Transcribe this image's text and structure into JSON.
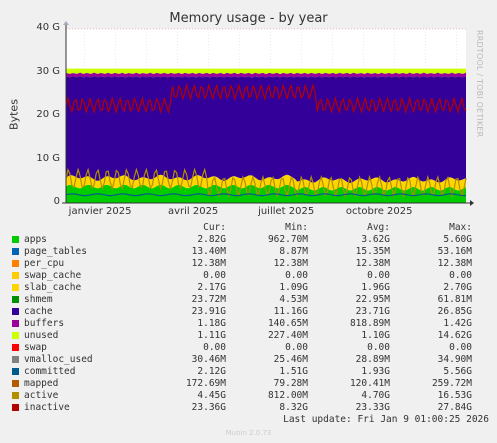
{
  "chart_data": {
    "type": "area",
    "title": "Memory usage - by year",
    "ylabel": "Bytes",
    "ylim": [
      0,
      40
    ],
    "yticks": [
      "0",
      "10 G",
      "20 G",
      "30 G",
      "40 G"
    ],
    "xticks": [
      {
        "label": "janvier 2025",
        "month": 0
      },
      {
        "label": "avril 2025",
        "month": 3
      },
      {
        "label": "juillet 2025",
        "month": 6
      },
      {
        "label": "octobre 2025",
        "month": 9
      }
    ],
    "x_range_months": [
      -0.6,
      12.3
    ],
    "grid": true,
    "legend_position": "bottom",
    "columns": [
      "Cur:",
      "Min:",
      "Avg:",
      "Max:"
    ],
    "series": [
      {
        "name": "apps",
        "color": "#00cc00",
        "cur": "2.82G",
        "min": "962.70M",
        "avg": "3.62G",
        "max": "5.60G"
      },
      {
        "name": "page_tables",
        "color": "#0066b3",
        "cur": "13.40M",
        "min": "8.87M",
        "avg": "15.35M",
        "max": "53.16M"
      },
      {
        "name": "per_cpu",
        "color": "#ff8000",
        "cur": "12.38M",
        "min": "12.38M",
        "avg": "12.38M",
        "max": "12.38M"
      },
      {
        "name": "swap_cache",
        "color": "#ffcc00",
        "cur": "0.00",
        "min": "0.00",
        "avg": "0.00",
        "max": "0.00"
      },
      {
        "name": "slab_cache",
        "color": "#ffd500",
        "cur": "2.17G",
        "min": "1.09G",
        "avg": "1.96G",
        "max": "2.70G"
      },
      {
        "name": "shmem",
        "color": "#008f00",
        "cur": "23.72M",
        "min": "4.53M",
        "avg": "22.95M",
        "max": "61.81M"
      },
      {
        "name": "cache",
        "color": "#330099",
        "cur": "23.91G",
        "min": "11.16G",
        "avg": "23.71G",
        "max": "26.85G"
      },
      {
        "name": "buffers",
        "color": "#990099",
        "cur": "1.18G",
        "min": "140.65M",
        "avg": "818.89M",
        "max": "1.42G"
      },
      {
        "name": "unused",
        "color": "#ccff00",
        "cur": "1.11G",
        "min": "227.40M",
        "avg": "1.10G",
        "max": "14.62G"
      },
      {
        "name": "swap",
        "color": "#ff0000",
        "cur": "0.00",
        "min": "0.00",
        "avg": "0.00",
        "max": "0.00"
      },
      {
        "name": "vmalloc_used",
        "color": "#808080",
        "cur": "30.46M",
        "min": "25.46M",
        "avg": "28.89M",
        "max": "34.90M"
      },
      {
        "name": "committed",
        "color": "#005a8c",
        "cur": "2.12G",
        "min": "1.51G",
        "avg": "1.93G",
        "max": "5.56G"
      },
      {
        "name": "mapped",
        "color": "#b35a00",
        "cur": "172.69M",
        "min": "79.28M",
        "avg": "120.41M",
        "max": "259.72M"
      },
      {
        "name": "active",
        "color": "#b38f00",
        "cur": "4.45G",
        "min": "812.00M",
        "avg": "4.70G",
        "max": "16.53G"
      },
      {
        "name": "inactive",
        "color": "#b30000",
        "cur": "23.36G",
        "min": "8.32G",
        "avg": "23.33G",
        "max": "27.84G"
      }
    ]
  },
  "last_update": "Last update: Fri Jan  9 01:00:25 2026",
  "watermark": "RRDTOOL / TOBI OETIKER",
  "footer": "Munin 2.0.73"
}
